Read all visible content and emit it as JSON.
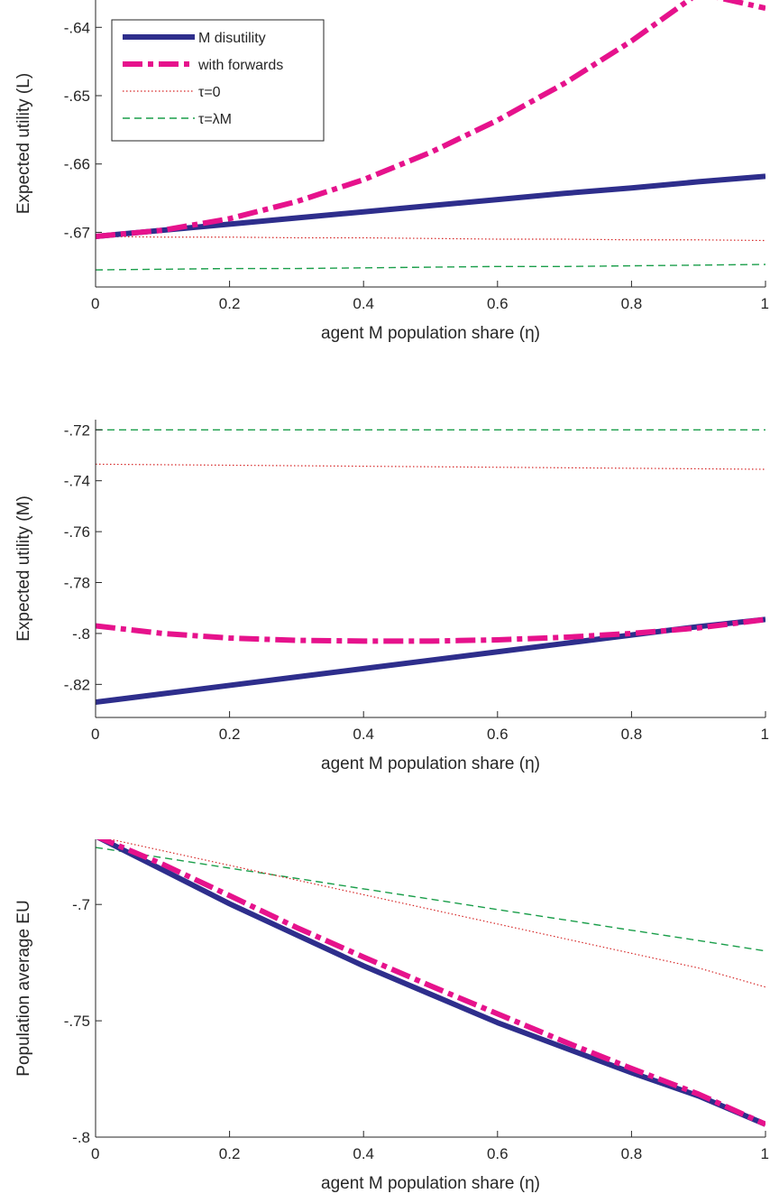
{
  "chart_data": [
    {
      "type": "line",
      "xlabel": "agent M population share (η)",
      "ylabel": "Expected utility (L)",
      "xlim": [
        0,
        1
      ],
      "ylim": [
        -0.678,
        -0.636
      ],
      "xticks": [
        0,
        0.2,
        0.4,
        0.6,
        0.8,
        1
      ],
      "yticks": [
        -0.67,
        -0.66,
        -0.65,
        -0.64
      ],
      "x": [
        0,
        0.1,
        0.2,
        0.3,
        0.4,
        0.5,
        0.6,
        0.7,
        0.8,
        0.9,
        1
      ],
      "legend": {
        "placement": "top-left",
        "entries": [
          "M disutility",
          "with forwards",
          "τ=0",
          "τ=λM"
        ]
      },
      "series": [
        {
          "name": "M disutility",
          "color": "#2e2e8c",
          "style": "solid-thick",
          "values": [
            -0.6706,
            -0.6697,
            -0.6688,
            -0.6679,
            -0.667,
            -0.6661,
            -0.6652,
            -0.6643,
            -0.6635,
            -0.6626,
            -0.6618
          ]
        },
        {
          "name": "with forwards",
          "color": "#e6128c",
          "style": "dashdot-thick",
          "values": [
            -0.6706,
            -0.6697,
            -0.668,
            -0.6655,
            -0.6623,
            -0.6583,
            -0.6536,
            -0.6482,
            -0.642,
            -0.635,
            -0.6372
          ]
        },
        {
          "name": "τ=0",
          "color": "#d62828",
          "style": "dotted",
          "values": [
            -0.6706,
            -0.6707,
            -0.6707,
            -0.6708,
            -0.6708,
            -0.6709,
            -0.671,
            -0.671,
            -0.6711,
            -0.6711,
            -0.6712
          ]
        },
        {
          "name": "τ=λM",
          "color": "#1a9e4a",
          "style": "dashed",
          "values": [
            -0.6755,
            -0.6754,
            -0.6753,
            -0.6753,
            -0.6752,
            -0.6751,
            -0.675,
            -0.675,
            -0.6749,
            -0.6748,
            -0.6747
          ]
        }
      ]
    },
    {
      "type": "line",
      "xlabel": "agent M population share (η)",
      "ylabel": "Expected utility (M)",
      "xlim": [
        0,
        1
      ],
      "ylim": [
        -0.833,
        -0.716
      ],
      "xticks": [
        0,
        0.2,
        0.4,
        0.6,
        0.8,
        1
      ],
      "yticks": [
        -0.82,
        -0.8,
        -0.78,
        -0.76,
        -0.74,
        -0.72
      ],
      "x": [
        0,
        0.1,
        0.2,
        0.3,
        0.4,
        0.5,
        0.6,
        0.7,
        0.8,
        0.9,
        1
      ],
      "series": [
        {
          "name": "M disutility",
          "color": "#2e2e8c",
          "style": "solid-thick",
          "values": [
            -0.827,
            -0.8237,
            -0.8204,
            -0.8171,
            -0.8138,
            -0.8105,
            -0.8072,
            -0.8039,
            -0.8006,
            -0.7973,
            -0.7945
          ]
        },
        {
          "name": "with forwards",
          "color": "#e6128c",
          "style": "dashdot-thick",
          "values": [
            -0.797,
            -0.8,
            -0.8018,
            -0.8027,
            -0.803,
            -0.803,
            -0.8025,
            -0.8015,
            -0.8,
            -0.7978,
            -0.7945
          ]
        },
        {
          "name": "τ=0",
          "color": "#d62828",
          "style": "dotted",
          "values": [
            -0.7335,
            -0.7337,
            -0.7339,
            -0.7341,
            -0.7343,
            -0.7345,
            -0.7347,
            -0.7349,
            -0.7351,
            -0.7353,
            -0.7355
          ]
        },
        {
          "name": "τ=λM",
          "color": "#1a9e4a",
          "style": "dashed",
          "values": [
            -0.72,
            -0.72,
            -0.72,
            -0.72,
            -0.72,
            -0.72,
            -0.72,
            -0.72,
            -0.72,
            -0.72,
            -0.72
          ]
        }
      ]
    },
    {
      "type": "line",
      "xlabel": "agent M population share (η)",
      "ylabel": "Population average EU",
      "xlim": [
        0,
        1
      ],
      "ylim": [
        -0.8,
        -0.672
      ],
      "xticks": [
        0,
        0.2,
        0.4,
        0.6,
        0.8,
        1
      ],
      "yticks": [
        -0.8,
        -0.75,
        -0.7
      ],
      "x": [
        0,
        0.1,
        0.2,
        0.3,
        0.4,
        0.5,
        0.6,
        0.7,
        0.8,
        0.9,
        1
      ],
      "series": [
        {
          "name": "M disutility",
          "color": "#2e2e8c",
          "style": "solid-thick",
          "values": [
            -0.6706,
            -0.6851,
            -0.6997,
            -0.7131,
            -0.7264,
            -0.7386,
            -0.7508,
            -0.7616,
            -0.7723,
            -0.7823,
            -0.7945
          ]
        },
        {
          "name": "with forwards",
          "color": "#e6128c",
          "style": "dashdot-thick",
          "values": [
            -0.6706,
            -0.6827,
            -0.6962,
            -0.7099,
            -0.7226,
            -0.735,
            -0.747,
            -0.759,
            -0.7705,
            -0.7815,
            -0.7945
          ]
        },
        {
          "name": "τ=0",
          "color": "#d62828",
          "style": "dotted",
          "values": [
            -0.6706,
            -0.6769,
            -0.6832,
            -0.6895,
            -0.6958,
            -0.7021,
            -0.7084,
            -0.7147,
            -0.721,
            -0.7273,
            -0.7355
          ]
        },
        {
          "name": "τ=λM",
          "color": "#1a9e4a",
          "style": "dashed",
          "values": [
            -0.6755,
            -0.6799,
            -0.6844,
            -0.6888,
            -0.6933,
            -0.6977,
            -0.7022,
            -0.7066,
            -0.7111,
            -0.7155,
            -0.72
          ]
        }
      ]
    }
  ]
}
